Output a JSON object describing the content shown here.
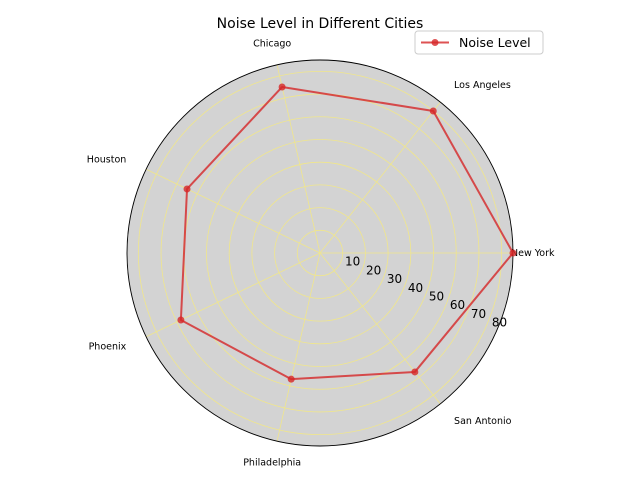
{
  "chart_data": {
    "type": "radar",
    "title": "Noise Level in Different Cities",
    "categories": [
      "New York",
      "Los Angeles",
      "Chicago",
      "Houston",
      "Phoenix",
      "Philadelphia",
      "San Antonio"
    ],
    "series": [
      {
        "name": "Noise Level",
        "values": [
          85,
          80,
          75,
          65,
          68,
          57,
          67
        ],
        "color": "#d62728"
      }
    ],
    "rlim": [
      0,
      85
    ],
    "rticks": [
      10,
      20,
      30,
      40,
      50,
      60,
      70,
      80
    ],
    "grid": true,
    "legend_position": "top-right",
    "colors": {
      "background": "#d3d3d3",
      "grid": "#f0e68c",
      "line": "#d62728"
    }
  }
}
